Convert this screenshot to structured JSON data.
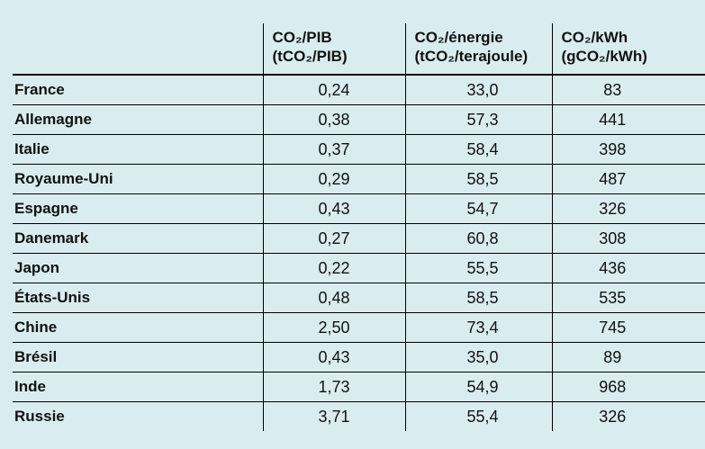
{
  "colors": {
    "background": "#d9edf0",
    "rule": "#000000",
    "text": "#111111"
  },
  "table": {
    "headers": [
      {
        "line1": "CO₂/PIB",
        "line2": "(tCO₂/PIB)"
      },
      {
        "line1": "CO₂/énergie",
        "line2": "(tCO₂/terajoule)"
      },
      {
        "line1": "CO₂/kWh",
        "line2": "(gCO₂/kWh)"
      }
    ],
    "rows": [
      {
        "country": "France",
        "co2_pib": "0,24",
        "co2_energie": "33,0",
        "co2_kwh": "83"
      },
      {
        "country": "Allemagne",
        "co2_pib": "0,38",
        "co2_energie": "57,3",
        "co2_kwh": "441"
      },
      {
        "country": "Italie",
        "co2_pib": "0,37",
        "co2_energie": "58,4",
        "co2_kwh": "398"
      },
      {
        "country": "Royaume-Uni",
        "co2_pib": "0,29",
        "co2_energie": "58,5",
        "co2_kwh": "487"
      },
      {
        "country": "Espagne",
        "co2_pib": "0,43",
        "co2_energie": "54,7",
        "co2_kwh": "326"
      },
      {
        "country": "Danemark",
        "co2_pib": "0,27",
        "co2_energie": "60,8",
        "co2_kwh": "308"
      },
      {
        "country": "Japon",
        "co2_pib": "0,22",
        "co2_energie": "55,5",
        "co2_kwh": "436"
      },
      {
        "country": "États-Unis",
        "co2_pib": "0,48",
        "co2_energie": "58,5",
        "co2_kwh": "535"
      },
      {
        "country": "Chine",
        "co2_pib": "2,50",
        "co2_energie": "73,4",
        "co2_kwh": "745"
      },
      {
        "country": "Brésil",
        "co2_pib": "0,43",
        "co2_energie": "35,0",
        "co2_kwh": "89"
      },
      {
        "country": "Inde",
        "co2_pib": "1,73",
        "co2_energie": "54,9",
        "co2_kwh": "968"
      },
      {
        "country": "Russie",
        "co2_pib": "3,71",
        "co2_energie": "55,4",
        "co2_kwh": "326"
      }
    ]
  },
  "chart_data": {
    "type": "table",
    "title": "",
    "row_header_label": "",
    "categories": [
      "France",
      "Allemagne",
      "Italie",
      "Royaume-Uni",
      "Espagne",
      "Danemark",
      "Japon",
      "États-Unis",
      "Chine",
      "Brésil",
      "Inde",
      "Russie"
    ],
    "series": [
      {
        "name": "CO₂/PIB (tCO₂/PIB)",
        "values": [
          0.24,
          0.38,
          0.37,
          0.29,
          0.43,
          0.27,
          0.22,
          0.48,
          2.5,
          0.43,
          1.73,
          3.71
        ]
      },
      {
        "name": "CO₂/énergie (tCO₂/terajoule)",
        "values": [
          33.0,
          57.3,
          58.4,
          58.5,
          54.7,
          60.8,
          55.5,
          58.5,
          73.4,
          35.0,
          54.9,
          55.4
        ]
      },
      {
        "name": "CO₂/kWh (gCO₂/kWh)",
        "values": [
          83,
          441,
          398,
          487,
          326,
          308,
          436,
          535,
          745,
          89,
          968,
          326
        ]
      }
    ],
    "decimal_separator": ",",
    "layout": {
      "grid": "horizontal-and-vertical-rules",
      "outer_border": false,
      "last_row_bottom_border": false
    }
  }
}
